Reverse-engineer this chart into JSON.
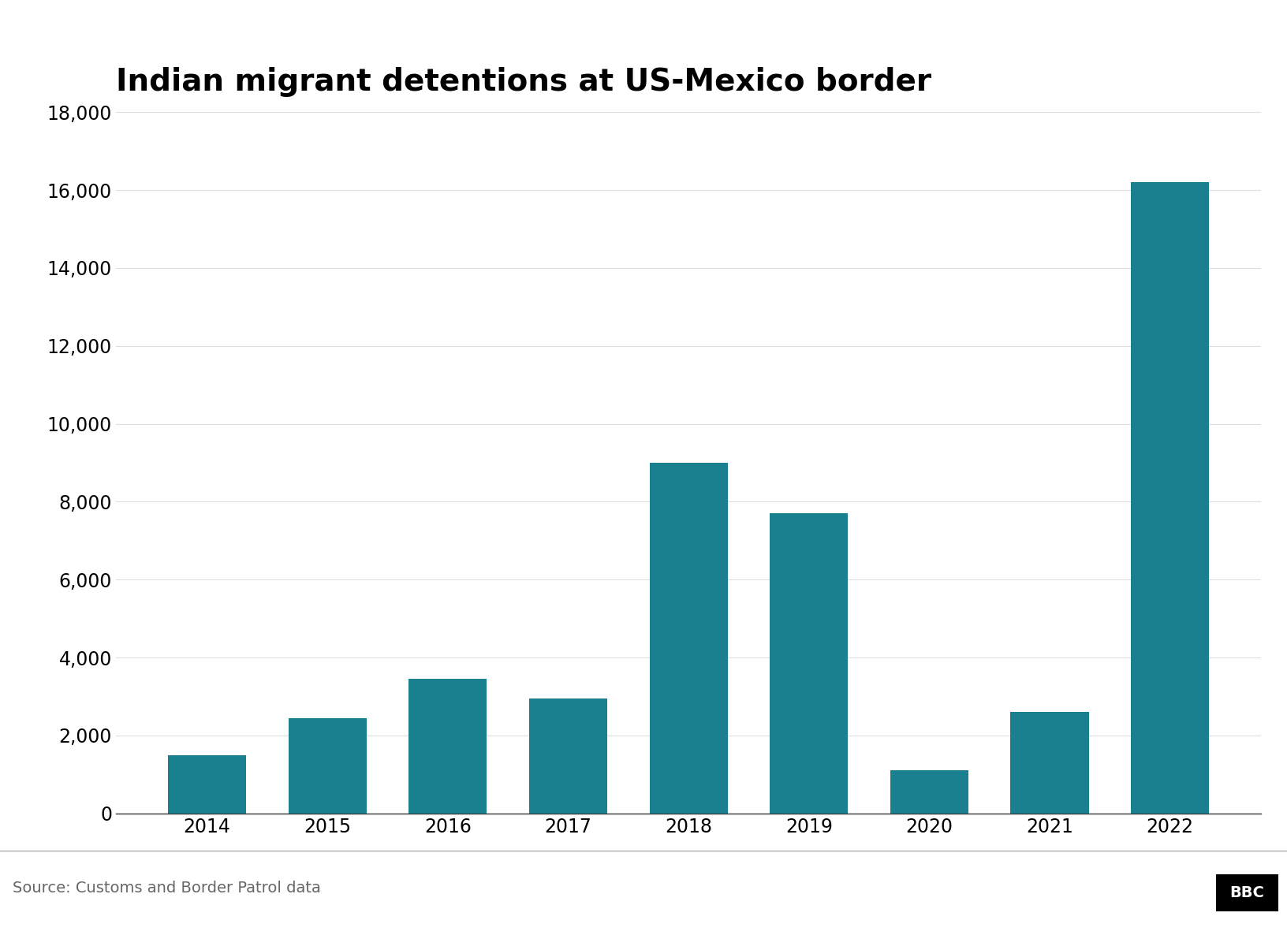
{
  "title": "Indian migrant detentions at US-Mexico border",
  "years": [
    "2014",
    "2015",
    "2016",
    "2017",
    "2018",
    "2019",
    "2020",
    "2021",
    "2022"
  ],
  "values": [
    1500,
    2450,
    3450,
    2950,
    9000,
    7700,
    1100,
    2600,
    16200
  ],
  "bar_color": "#1a7f8e",
  "background_color": "#ffffff",
  "ylim": [
    0,
    18000
  ],
  "yticks": [
    0,
    2000,
    4000,
    6000,
    8000,
    10000,
    12000,
    14000,
    16000,
    18000
  ],
  "title_fontsize": 28,
  "tick_fontsize": 17,
  "source_text": "Source: Customs and Border Patrol data",
  "source_fontsize": 14,
  "bbc_text": "BBC",
  "footer_line_color": "#aaaaaa"
}
